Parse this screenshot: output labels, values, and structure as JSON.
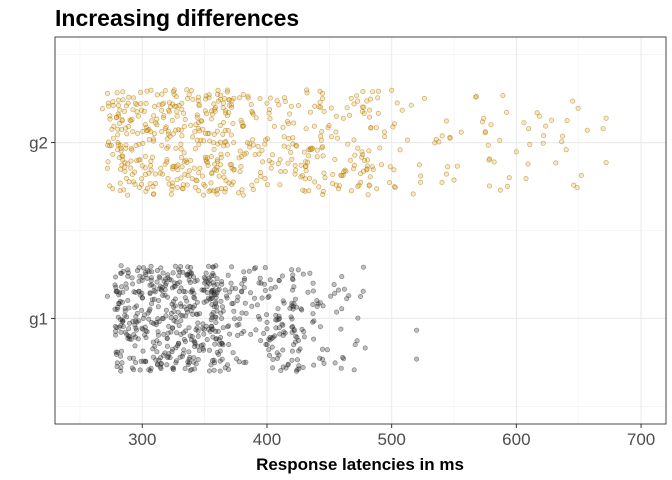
{
  "chart_data": {
    "type": "scatter",
    "title": "Increasing differences",
    "xlabel": "Response latencies in ms",
    "ylabel": "",
    "xlim": [
      230,
      720
    ],
    "xticks": [
      300,
      400,
      500,
      600,
      700
    ],
    "xtick_labels": [
      "300",
      "400",
      "500",
      "600",
      "700"
    ],
    "categories": [
      "g1",
      "g2"
    ],
    "jitter_height": 0.3,
    "grid": true,
    "legend": "none",
    "series": [
      {
        "category": "g1",
        "color": "#000000",
        "fill_opacity": 0.25,
        "n": 1000,
        "min": 272,
        "max": 520,
        "values": [
          300,
          310,
          320,
          330,
          340,
          350,
          360,
          370,
          380,
          390,
          400,
          410,
          420,
          430,
          440,
          445,
          460,
          475,
          520
        ]
      },
      {
        "category": "g2",
        "color": "#E69F00",
        "fill_opacity": 0.25,
        "n": 1000,
        "min": 268,
        "max": 672,
        "values": [
          300,
          320,
          340,
          360,
          380,
          400,
          430,
          460,
          500,
          550,
          600,
          640,
          672
        ]
      }
    ]
  }
}
